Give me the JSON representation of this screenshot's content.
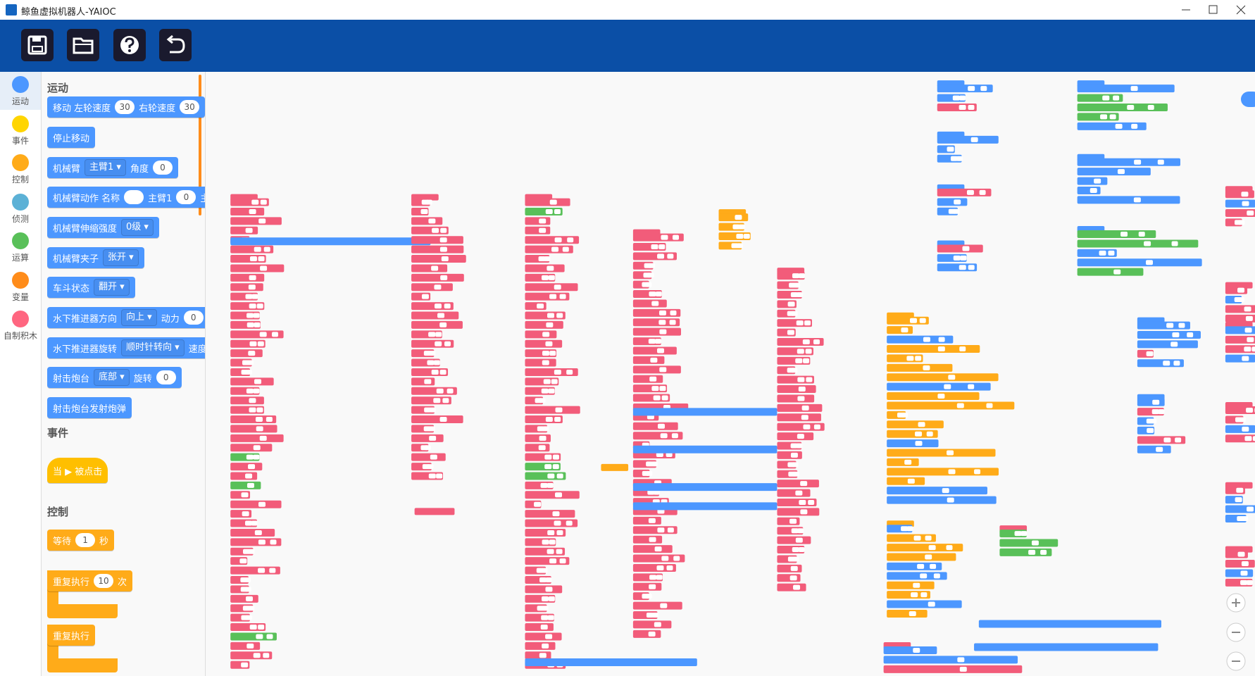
{
  "window": {
    "title": "鲸鱼虚拟机器人-YAIOC"
  },
  "categories": [
    {
      "label": "运动",
      "color": "#4c97ff"
    },
    {
      "label": "事件",
      "color": "#ffd500"
    },
    {
      "label": "控制",
      "color": "#ffab19"
    },
    {
      "label": "侦测",
      "color": "#5cb1d6"
    },
    {
      "label": "运算",
      "color": "#59c059"
    },
    {
      "label": "变量",
      "color": "#ff8c1a"
    },
    {
      "label": "自制积木",
      "color": "#ff6680"
    }
  ],
  "flyout": {
    "sections": [
      {
        "title": "运动",
        "color": "#4c97ff",
        "blocks": [
          {
            "parts": [
              {
                "text": "移动 左轮速度"
              },
              {
                "input": "30"
              },
              {
                "text": "右轮速度"
              },
              {
                "input": "30"
              }
            ]
          },
          {
            "parts": [
              {
                "text": "停止移动"
              }
            ]
          },
          {
            "parts": [
              {
                "text": "机械臂"
              },
              {
                "dropdown": "主臂1 ▾"
              },
              {
                "text": "角度"
              },
              {
                "input": "0"
              }
            ]
          },
          {
            "parts": [
              {
                "text": "机械臂动作 名称"
              },
              {
                "input": null
              },
              {
                "text": "主臂1"
              },
              {
                "input": "0"
              },
              {
                "text": "主"
              }
            ]
          },
          {
            "parts": [
              {
                "text": "机械臂伸缩强度"
              },
              {
                "dropdown": "0级 ▾"
              }
            ]
          },
          {
            "parts": [
              {
                "text": "机械臂夹子"
              },
              {
                "dropdown": "张开 ▾"
              }
            ]
          },
          {
            "parts": [
              {
                "text": "车斗状态"
              },
              {
                "dropdown": "翻开 ▾"
              }
            ]
          },
          {
            "parts": [
              {
                "text": "水下推进器方向"
              },
              {
                "dropdown": "向上 ▾"
              },
              {
                "text": "动力"
              },
              {
                "input": "0"
              }
            ]
          },
          {
            "parts": [
              {
                "text": "水下推进器旋转"
              },
              {
                "dropdown": "顺时针转向 ▾"
              },
              {
                "text": "速度"
              }
            ]
          },
          {
            "parts": [
              {
                "text": "射击炮台"
              },
              {
                "dropdown": "底部 ▾"
              },
              {
                "text": "旋转"
              },
              {
                "input": "0"
              }
            ]
          },
          {
            "parts": [
              {
                "text": "射击炮台发射炮弹"
              }
            ]
          }
        ]
      },
      {
        "title": "事件",
        "color": "#ffbf00",
        "blocks": [
          {
            "hat": true,
            "parts": [
              {
                "text": "当 ▶ 被点击"
              }
            ]
          }
        ]
      },
      {
        "title": "控制",
        "color": "#ffab19",
        "blocks": [
          {
            "parts": [
              {
                "text": "等待"
              },
              {
                "input": "1"
              },
              {
                "text": "秒"
              }
            ]
          },
          {
            "loop": true,
            "parts": [
              {
                "text": "重复执行"
              },
              {
                "input": "10"
              },
              {
                "text": "次"
              }
            ]
          },
          {
            "loop": true,
            "parts": [
              {
                "text": "重复执行"
              }
            ]
          }
        ]
      }
    ]
  }
}
